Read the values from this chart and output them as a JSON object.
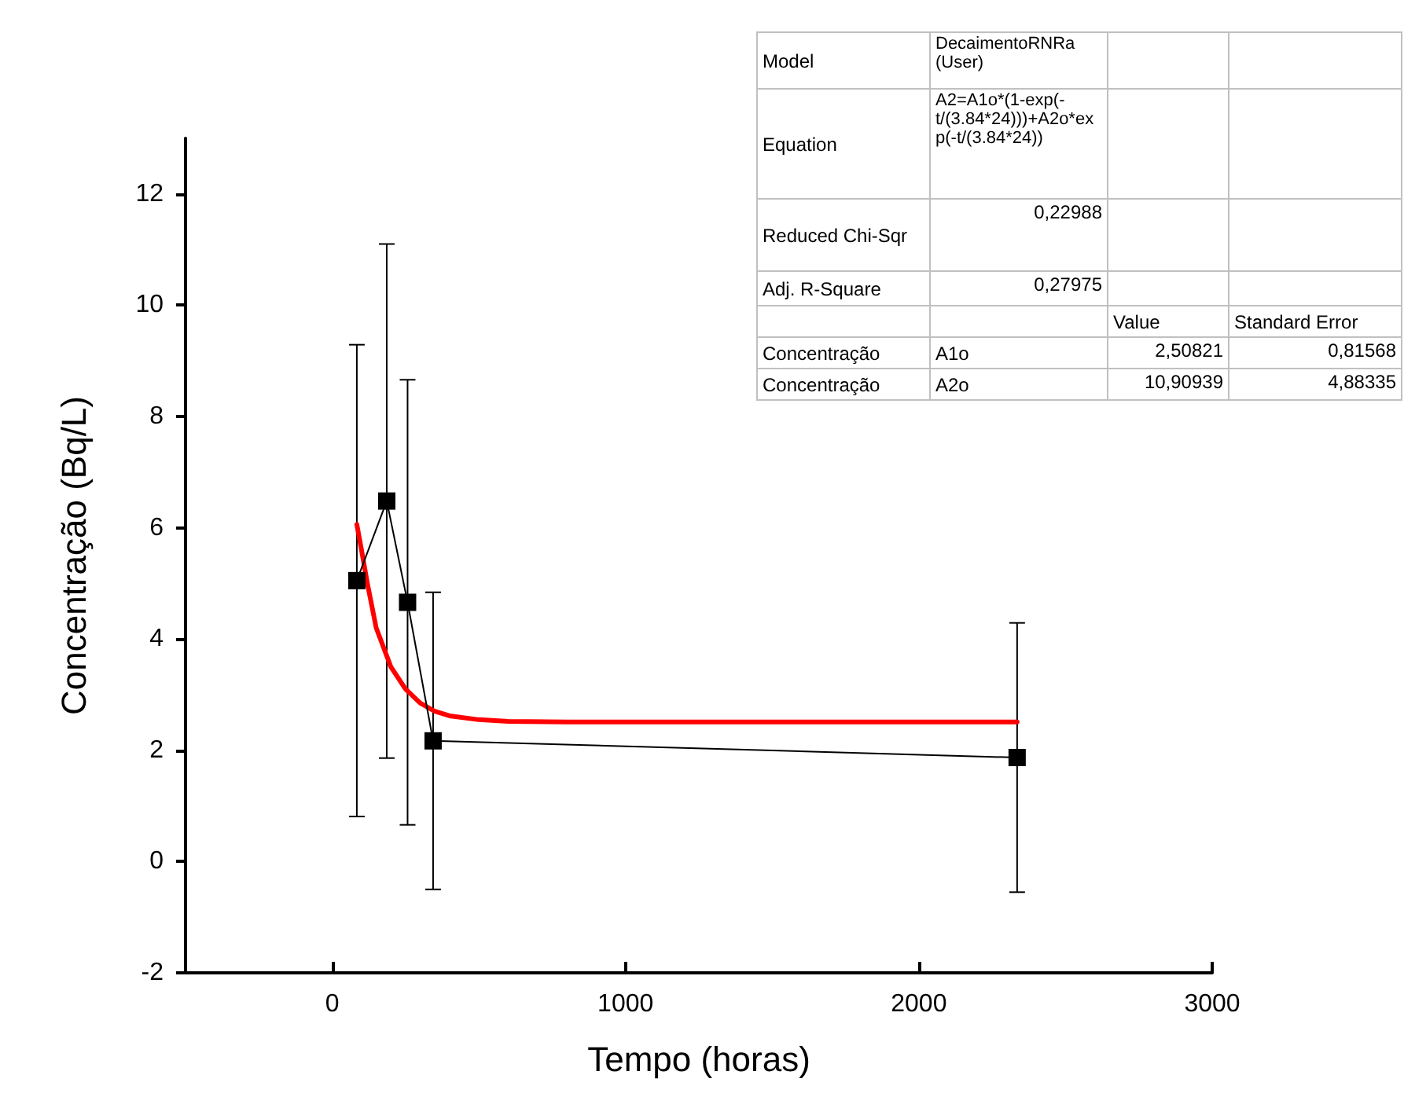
{
  "chart_data": {
    "type": "line",
    "xlabel": "Tempo (horas)",
    "ylabel": "Concentração (Bq/L)",
    "xlim": [
      -500,
      3000
    ],
    "xticks": [
      0,
      1000,
      2000,
      3000
    ],
    "ylim": [
      -2,
      13
    ],
    "yticks": [
      -2,
      0,
      2,
      4,
      6,
      8,
      10,
      12
    ],
    "grid": false,
    "series": [
      {
        "color": "#000000",
        "marker": "square",
        "line_style": "solid",
        "x": [
          84,
          186,
          257,
          344,
          2335
        ],
        "values": [
          5.05,
          6.48,
          4.66,
          2.17,
          1.87
        ],
        "errors": [
          4.24,
          4.62,
          4.0,
          2.67,
          2.42
        ]
      },
      {
        "color": "#ff0000",
        "marker": "none",
        "line_style": "solid",
        "x": [
          84,
          100,
          120,
          150,
          200,
          250,
          300,
          350,
          400,
          500,
          600,
          800,
          1000,
          1500,
          2335
        ],
        "values": [
          6.06,
          5.6,
          5.0,
          4.2,
          3.5,
          3.1,
          2.85,
          2.7,
          2.62,
          2.55,
          2.52,
          2.51,
          2.51,
          2.51,
          2.51
        ]
      }
    ],
    "annotations": [
      "Model",
      "DecaimentoRNRa (User)",
      "Equation",
      "A2=A1o*(1-exp(-t/(3.84*24)))+A2o*exp(-t/(3.84*24))",
      "Reduced Chi-Sqr",
      "0,22988",
      "Adj. R-Square",
      "0,27975",
      "Value",
      "Standard Error",
      "Concentração",
      "A1o",
      "2,50821",
      "0,81568",
      "Concentração",
      "A2o",
      "10,90939",
      "4,88335"
    ]
  }
}
